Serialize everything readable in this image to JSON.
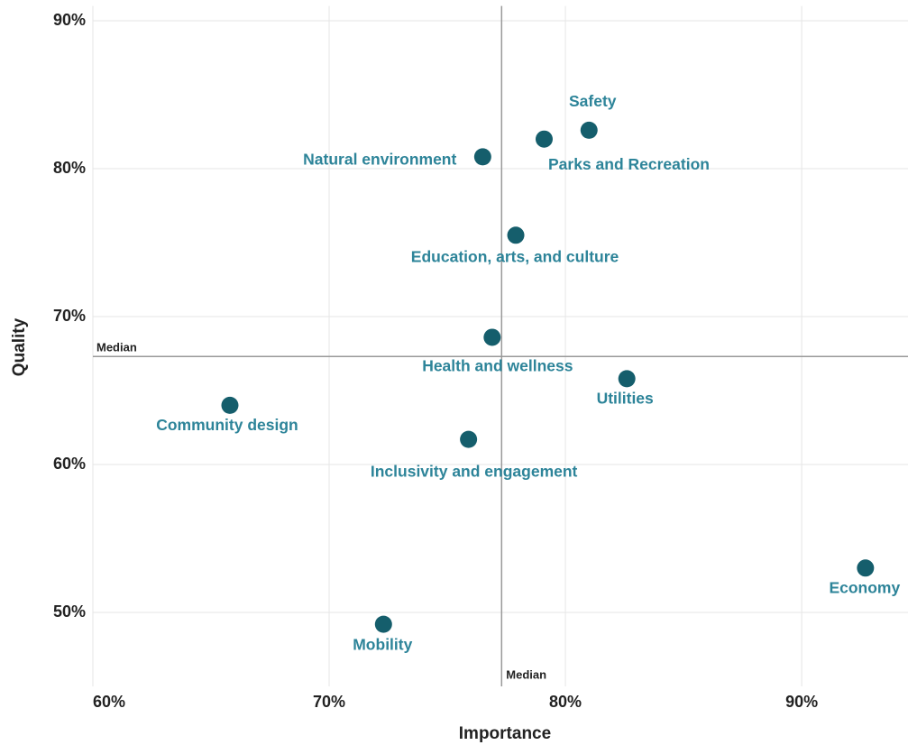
{
  "chart_data": {
    "type": "scatter",
    "x_label": "Importance",
    "y_label": "Quality",
    "labels": [
      "Safety",
      "Parks and Recreation",
      "Natural environment",
      "Education, arts, and culture",
      "Health and wellness",
      "Utilities",
      "Community design",
      "Inclusivity and engagement",
      "Economy",
      "Mobility"
    ],
    "x": [
      81.0,
      79.1,
      76.5,
      77.9,
      76.9,
      82.6,
      65.8,
      75.9,
      92.7,
      72.3
    ],
    "values": [
      82.6,
      82.0,
      80.8,
      75.5,
      68.6,
      65.8,
      64.0,
      61.7,
      53.0,
      49.2
    ],
    "color": "#155e6c",
    "label_color": "#2d8499",
    "xlim": [
      60,
      94.5
    ],
    "ylim": [
      45,
      91
    ],
    "xticks": [
      {
        "value": 60,
        "label": "60%"
      },
      {
        "value": 70,
        "label": "70%"
      },
      {
        "value": 80,
        "label": "80%"
      },
      {
        "value": 90,
        "label": "90%"
      }
    ],
    "yticks": [
      {
        "value": 50,
        "label": "50%"
      },
      {
        "value": 60,
        "label": "60%"
      },
      {
        "value": 70,
        "label": "70%"
      },
      {
        "value": 80,
        "label": "80%"
      },
      {
        "value": 90,
        "label": "90%"
      }
    ],
    "grid": true,
    "medians": {
      "x": {
        "value": 77.3,
        "label": "Median"
      },
      "y": {
        "value": 67.3,
        "label": "Median"
      }
    }
  }
}
